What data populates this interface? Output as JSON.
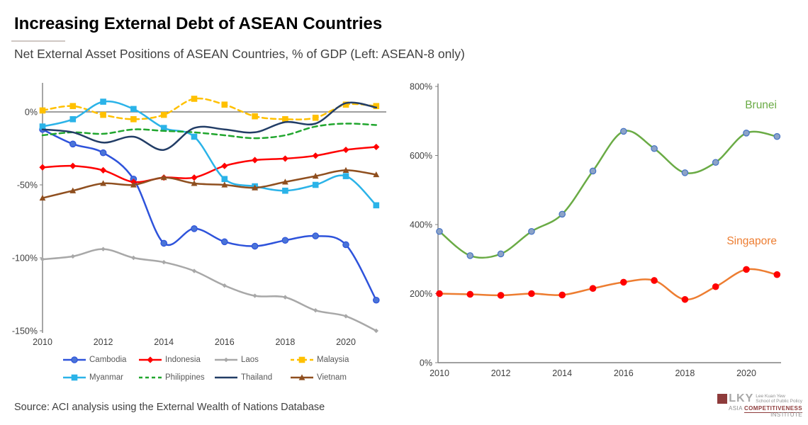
{
  "header": {
    "title": "Increasing External Debt of ASEAN Countries",
    "subtitle": "Net External Asset Positions of ASEAN Countries, % of GDP (Left: ASEAN-8 only)"
  },
  "source": "Source: ACI analysis using the External Wealth of Nations Database",
  "logo": {
    "lky": "LKY",
    "school_line1": "Lee Kuan Yew",
    "school_line2": "School of Public Policy",
    "institute_prefix": "Asia",
    "institute_highlight": "Competitiveness",
    "institute_suffix": "Institute",
    "maroon": "#8e3b3b"
  },
  "chart_data": [
    {
      "name": "asean8-panel",
      "type": "line",
      "title": "",
      "xlabel": "",
      "ylabel": "% of GDP",
      "x": [
        2010,
        2011,
        2012,
        2013,
        2014,
        2015,
        2016,
        2017,
        2018,
        2019,
        2020,
        2021
      ],
      "x_tick_labels": [
        "2010",
        "2012",
        "2014",
        "2016",
        "2018",
        "2020"
      ],
      "x_tick_values": [
        2010,
        2012,
        2014,
        2016,
        2018,
        2020
      ],
      "y_ticks": [
        {
          "label": "0%",
          "value": 0
        },
        {
          "label": "-50%",
          "value": -50
        },
        {
          "label": "-100%",
          "value": -100
        },
        {
          "label": "-150%",
          "value": -150
        }
      ],
      "ylim": [
        -152,
        20
      ],
      "grid": "zero-line-only",
      "legend_position": "bottom",
      "series": [
        {
          "name": "Cambodia",
          "color": "#2E53DB",
          "dash": "solid",
          "marker": "circle",
          "marker_fill": "#4a74d8",
          "values": [
            -12,
            -22,
            -28,
            -46,
            -90,
            -80,
            -89,
            -92,
            -88,
            -85,
            -91,
            -129
          ]
        },
        {
          "name": "Indonesia",
          "color": "#FF0000",
          "dash": "solid",
          "marker": "diamond",
          "marker_fill": "#FF0000",
          "values": [
            -38,
            -37,
            -40,
            -48,
            -45,
            -45,
            -37,
            -33,
            -32,
            -30,
            -26,
            -24
          ]
        },
        {
          "name": "Laos",
          "color": "#A8A8A8",
          "dash": "solid",
          "marker": "diamond-small",
          "marker_fill": "#A8A8A8",
          "values": [
            -101,
            -99,
            -94,
            -100,
            -103,
            -109,
            -119,
            -126,
            -127,
            -136,
            -140,
            -150
          ]
        },
        {
          "name": "Malaysia",
          "color": "#FFC000",
          "dash": "dashed",
          "marker": "square",
          "marker_fill": "#FFC000",
          "values": [
            1,
            4,
            -2,
            -5,
            -2,
            9,
            5,
            -3,
            -5,
            -4,
            5,
            4
          ]
        },
        {
          "name": "Myanmar",
          "color": "#2BB3E8",
          "dash": "solid",
          "marker": "square",
          "marker_fill": "#2BB3E8",
          "values": [
            -10,
            -5,
            7,
            2,
            -11,
            -17,
            -46,
            -51,
            -54,
            -50,
            -44,
            -64
          ]
        },
        {
          "name": "Philippines",
          "color": "#21A62E",
          "dash": "dashed",
          "marker": "none",
          "marker_fill": "#21A62E",
          "values": [
            -16,
            -14,
            -15,
            -12,
            -13,
            -14,
            -16,
            -18,
            -16,
            -10,
            -8,
            -9
          ]
        },
        {
          "name": "Thailand",
          "color": "#223D66",
          "dash": "solid",
          "marker": "none",
          "marker_fill": "#223D66",
          "values": [
            -12,
            -14,
            -21,
            -17,
            -26,
            -11,
            -12,
            -14,
            -7,
            -8,
            6,
            3
          ]
        },
        {
          "name": "Vietnam",
          "color": "#8F4F1F",
          "dash": "solid",
          "marker": "triangle",
          "marker_fill": "#8F4F1F",
          "values": [
            -59,
            -54,
            -49,
            -50,
            -45,
            -49,
            -50,
            -52,
            -48,
            -44,
            -40,
            -43
          ]
        }
      ]
    },
    {
      "name": "brunei-singapore-panel",
      "type": "line",
      "title": "",
      "xlabel": "",
      "ylabel": "% of GDP",
      "x": [
        2010,
        2011,
        2012,
        2013,
        2014,
        2015,
        2016,
        2017,
        2018,
        2019,
        2020,
        2021
      ],
      "x_tick_labels": [
        "2010",
        "2012",
        "2014",
        "2016",
        "2018",
        "2020"
      ],
      "x_tick_values": [
        2010,
        2012,
        2014,
        2016,
        2018,
        2020
      ],
      "y_ticks": [
        {
          "label": "0%",
          "value": 0
        },
        {
          "label": "200%",
          "value": 200
        },
        {
          "label": "400%",
          "value": 400
        },
        {
          "label": "600%",
          "value": 600
        },
        {
          "label": "800%",
          "value": 800
        }
      ],
      "ylim": [
        0,
        800
      ],
      "grid": "none",
      "legend_position": "inline-labels",
      "series": [
        {
          "name": "Brunei",
          "color": "#6AAB45",
          "dash": "solid",
          "marker": "circle",
          "marker_fill": "#8CA3C7",
          "marker_stroke": "#4472C4",
          "values": [
            380,
            310,
            315,
            380,
            430,
            555,
            670,
            620,
            550,
            580,
            665,
            655
          ]
        },
        {
          "name": "Singapore",
          "color": "#ED7D31",
          "dash": "solid",
          "marker": "circle",
          "marker_fill": "#FF0000",
          "marker_stroke": "#FF0000",
          "values": [
            200,
            198,
            195,
            200,
            196,
            215,
            233,
            238,
            183,
            220,
            270,
            255
          ]
        }
      ]
    }
  ]
}
